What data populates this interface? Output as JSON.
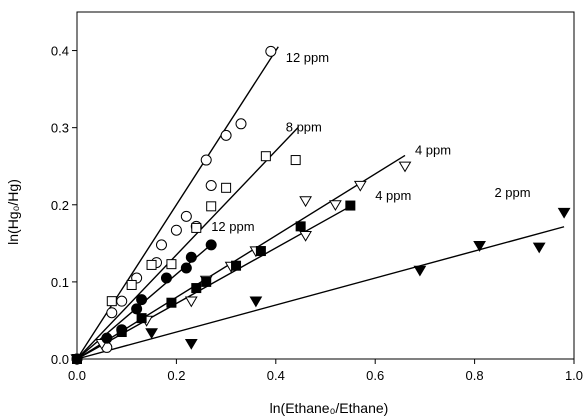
{
  "chart_data": {
    "type": "scatter",
    "xlabel": "ln(Ethane₀/Ethane)",
    "ylabel": "ln(Hg₀/Hg)",
    "xlim": [
      0.0,
      1.0
    ],
    "ylim": [
      0.0,
      0.45
    ],
    "x_ticks": [
      0.0,
      0.2,
      0.4,
      0.6,
      0.8,
      1.0
    ],
    "x_tick_labels": [
      "0.0",
      "0.2",
      "0.4",
      "0.6",
      "0.8",
      "1.0"
    ],
    "y_ticks": [
      0.0,
      0.1,
      0.2,
      0.3,
      0.4
    ],
    "y_tick_labels": [
      "0.0",
      "0.1",
      "0.2",
      "0.3",
      "0.4"
    ],
    "grid": false,
    "series": [
      {
        "marker": "circle-open",
        "fit_slope": 1.0,
        "fit_x_end": 0.405,
        "label": "12 ppm",
        "label_at": [
          0.42,
          0.385
        ],
        "points": [
          [
            0.0,
            0.0
          ],
          [
            0.06,
            0.015
          ],
          [
            0.07,
            0.06
          ],
          [
            0.09,
            0.075
          ],
          [
            0.12,
            0.105
          ],
          [
            0.16,
            0.125
          ],
          [
            0.17,
            0.148
          ],
          [
            0.2,
            0.167
          ],
          [
            0.22,
            0.185
          ],
          [
            0.24,
            0.172
          ],
          [
            0.26,
            0.258
          ],
          [
            0.27,
            0.225
          ],
          [
            0.3,
            0.29
          ],
          [
            0.33,
            0.305
          ],
          [
            0.39,
            0.399
          ]
        ]
      },
      {
        "marker": "square-open",
        "fit_slope": 0.675,
        "fit_x_end": 0.445,
        "label": "8 ppm",
        "label_at": [
          0.42,
          0.295
        ],
        "points": [
          [
            0.0,
            0.0
          ],
          [
            0.07,
            0.075
          ],
          [
            0.11,
            0.096
          ],
          [
            0.15,
            0.122
          ],
          [
            0.19,
            0.123
          ],
          [
            0.24,
            0.17
          ],
          [
            0.27,
            0.198
          ],
          [
            0.3,
            0.222
          ],
          [
            0.38,
            0.263
          ],
          [
            0.44,
            0.258
          ]
        ]
      },
      {
        "marker": "triangle-down-open",
        "fit_slope": 0.4,
        "fit_x_end": 0.66,
        "label": "4 ppm",
        "label_at": [
          0.68,
          0.265
        ],
        "points": [
          [
            0.0,
            0.0
          ],
          [
            0.05,
            0.02
          ],
          [
            0.14,
            0.05
          ],
          [
            0.23,
            0.075
          ],
          [
            0.26,
            0.102
          ],
          [
            0.31,
            0.12
          ],
          [
            0.36,
            0.14
          ],
          [
            0.46,
            0.16
          ],
          [
            0.46,
            0.205
          ],
          [
            0.52,
            0.2
          ],
          [
            0.57,
            0.225
          ],
          [
            0.66,
            0.25
          ]
        ]
      },
      {
        "marker": "circle-filled",
        "fit_slope": 0.55,
        "fit_x_end": 0.27,
        "label": "12 ppm",
        "label_at": [
          0.27,
          0.166
        ],
        "points": [
          [
            0.0,
            0.0
          ],
          [
            0.06,
            0.027
          ],
          [
            0.09,
            0.038
          ],
          [
            0.12,
            0.065
          ],
          [
            0.13,
            0.077
          ],
          [
            0.18,
            0.105
          ],
          [
            0.22,
            0.118
          ],
          [
            0.23,
            0.132
          ],
          [
            0.27,
            0.148
          ]
        ]
      },
      {
        "marker": "square-filled",
        "fit_slope": 0.36,
        "fit_x_end": 0.555,
        "label": "4 ppm",
        "label_at": [
          0.6,
          0.206
        ],
        "points": [
          [
            0.0,
            0.0
          ],
          [
            0.09,
            0.035
          ],
          [
            0.13,
            0.053
          ],
          [
            0.19,
            0.073
          ],
          [
            0.24,
            0.092
          ],
          [
            0.26,
            0.1
          ],
          [
            0.32,
            0.121
          ],
          [
            0.37,
            0.14
          ],
          [
            0.45,
            0.172
          ],
          [
            0.55,
            0.199
          ]
        ]
      },
      {
        "marker": "triangle-down-filled",
        "fit_slope": 0.175,
        "fit_x_end": 0.98,
        "label": "2 ppm",
        "label_at": [
          0.84,
          0.21
        ],
        "points": [
          [
            0.0,
            0.0
          ],
          [
            0.15,
            0.034
          ],
          [
            0.23,
            0.02
          ],
          [
            0.36,
            0.075
          ],
          [
            0.69,
            0.115
          ],
          [
            0.81,
            0.147
          ],
          [
            0.93,
            0.145
          ],
          [
            0.98,
            0.19
          ]
        ]
      }
    ]
  }
}
